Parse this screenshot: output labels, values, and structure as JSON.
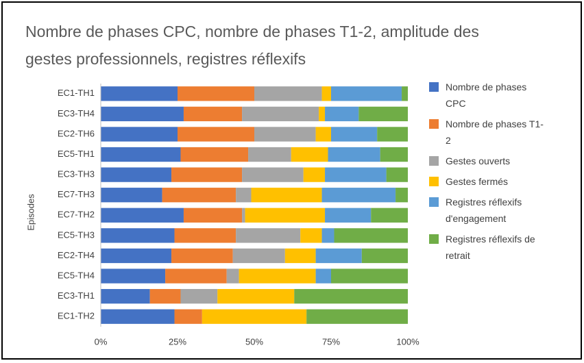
{
  "chart_data": {
    "type": "stacked-barh",
    "title": [
      "Nombre de phases CPC, nombre de phases  T1-2, amplitude des",
      "gestes professionnels, registres réflexifs"
    ],
    "y_label": "Episodes",
    "categories": [
      "EC1-TH1",
      "EC3-TH4",
      "EC2-TH6",
      "EC5-TH1",
      "EC3-TH3",
      "EC7-TH3",
      "EC7-TH2",
      "EC5-TH3",
      "EC2-TH4",
      "EC5-TH4",
      "EC3-TH1",
      "EC1-TH2"
    ],
    "series": [
      {
        "name": "Nombre de phases CPC",
        "color": "#4472c4",
        "values": [
          25,
          27,
          25,
          26,
          23,
          20,
          27,
          24,
          23,
          21,
          16,
          24
        ]
      },
      {
        "name": "Nombre de phases  T1-2",
        "color": "#ed7d31",
        "values": [
          25,
          19,
          25,
          22,
          23,
          24,
          19,
          20,
          20,
          20,
          10,
          9
        ]
      },
      {
        "name": "Gestes ouverts",
        "color": "#a5a5a5",
        "values": [
          22,
          25,
          20,
          14,
          20,
          5,
          1,
          21,
          17,
          4,
          12,
          0
        ]
      },
      {
        "name": "Gestes fermés",
        "color": "#ffc000",
        "values": [
          3,
          2,
          5,
          12,
          7,
          23,
          26,
          7,
          10,
          25,
          25,
          34
        ]
      },
      {
        "name": "Registres réflexifs d'engagement",
        "color": "#5b9bd5",
        "values": [
          23,
          11,
          15,
          17,
          20,
          24,
          15,
          4,
          15,
          5,
          0,
          0
        ]
      },
      {
        "name": "Registres réflexifs  de retrait",
        "color": "#70ad47",
        "values": [
          2,
          16,
          10,
          9,
          7,
          4,
          12,
          24,
          15,
          25,
          37,
          33
        ]
      }
    ],
    "xlim": [
      0,
      100
    ],
    "xticks": [
      {
        "value": 0,
        "label": "0%"
      },
      {
        "value": 25,
        "label": "25%"
      },
      {
        "value": 50,
        "label": "50%"
      },
      {
        "value": 75,
        "label": "75%"
      },
      {
        "value": 100,
        "label": "100%"
      }
    ],
    "legend": "right"
  }
}
